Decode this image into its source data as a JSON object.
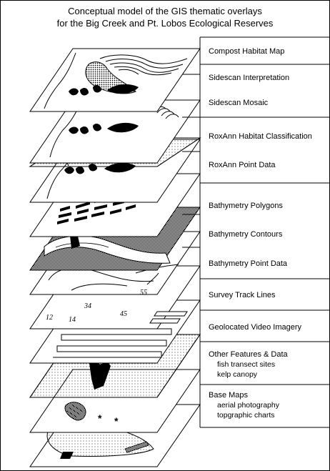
{
  "title": {
    "line1": "Conceptual model of the GIS thematic overlays",
    "line2": "for the Big Creek and Pt. Lobos Ecological Reserves"
  },
  "layers": [
    {
      "label": "Compost Habitat Map"
    },
    {
      "label": "Sidescan Interpretation"
    },
    {
      "label": "Sidescan Mosaic"
    },
    {
      "label": "RoxAnn Habitat Classification"
    },
    {
      "label": "RoxAnn Point Data"
    },
    {
      "label": "Bathymetry Polygons"
    },
    {
      "label": "Bathymetry Contours"
    },
    {
      "label": "Bathymetry Point Data"
    },
    {
      "label": "Survey Track Lines"
    },
    {
      "label": "Geolocated Video Imagery"
    },
    {
      "label": "Other Features & Data",
      "details": [
        "fish transect sites",
        "kelp canopy"
      ]
    },
    {
      "label": "Base Maps",
      "details": [
        "aerial photography",
        "topgraphic charts"
      ]
    }
  ],
  "map_annotations": {
    "depth_numbers": [
      "12",
      "14",
      "34",
      "45",
      "55"
    ]
  }
}
